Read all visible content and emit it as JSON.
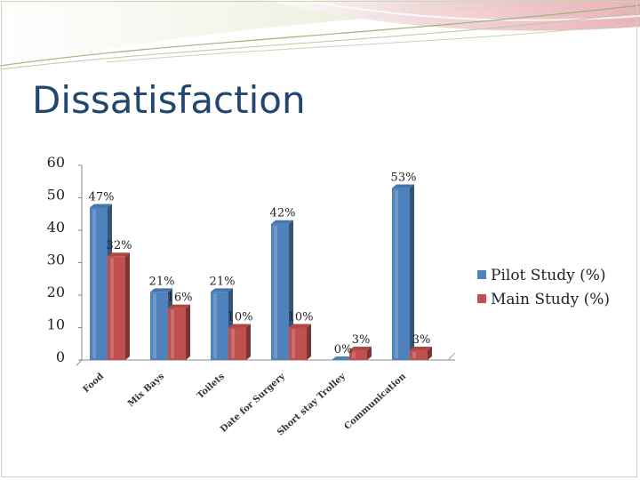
{
  "slide": {
    "title": "Dissatisfaction"
  },
  "colors": {
    "pilot": "#4f81bd",
    "main": "#c0504d",
    "title": "#23466e"
  },
  "chart_data": {
    "type": "bar",
    "categories": [
      "Food",
      "Mix Bays",
      "Toilets",
      "Date for Surgery",
      "Short stay Trolley",
      "Communication"
    ],
    "series": [
      {
        "name": "Pilot Study (%)",
        "values": [
          47,
          21,
          21,
          42,
          0,
          53
        ],
        "labels": [
          "47%",
          "21%",
          "21%",
          "42%",
          "0%",
          "53%"
        ]
      },
      {
        "name": "Main Study (%)",
        "values": [
          32,
          16,
          10,
          10,
          3,
          3
        ],
        "labels": [
          "32%",
          "16%",
          "10%",
          "10%",
          "3%",
          "3%"
        ]
      }
    ],
    "yticks": [
      "0",
      "10",
      "20",
      "30",
      "40",
      "50",
      "60"
    ],
    "ylim": [
      0,
      60
    ],
    "grid": false,
    "legend_position": "right",
    "style": "3d-clustered"
  }
}
